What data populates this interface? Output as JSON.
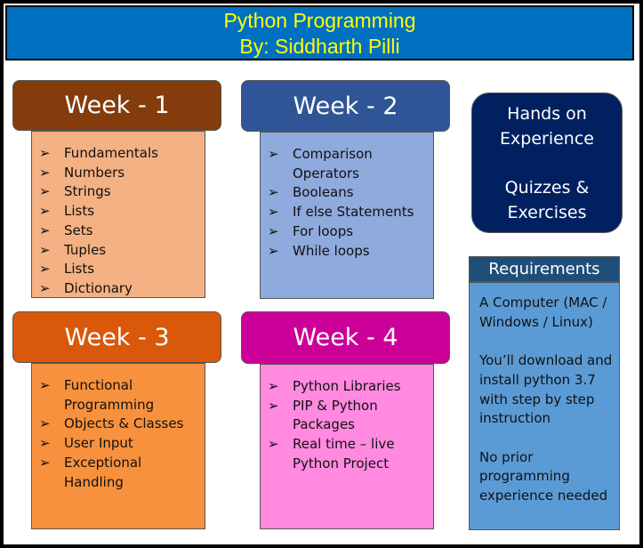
{
  "header": {
    "title": "Python Programming",
    "author": "By: Siddharth Pilli"
  },
  "weeks": [
    {
      "title": "Week - 1",
      "items": [
        "Fundamentals",
        "Numbers",
        "Strings",
        "Lists",
        "Sets",
        "Tuples",
        "Lists",
        "Dictionary"
      ]
    },
    {
      "title": "Week - 2",
      "items": [
        "Comparison Operators",
        "Booleans",
        "If else Statements",
        "For loops",
        "While loops"
      ]
    },
    {
      "title": "Week - 3",
      "items": [
        "Functional Programming",
        "Objects & Classes",
        "User Input",
        "Exceptional Handling"
      ]
    },
    {
      "title": "Week - 4",
      "items": [
        "Python Libraries",
        "PIP & Python Packages",
        "Real time – live Python Project"
      ]
    }
  ],
  "hands_on": [
    "Hands on Experience",
    "Quizzes & Exercises"
  ],
  "requirements": {
    "title": "Requirements",
    "paragraphs": [
      "A Computer (MAC / Windows / Linux)",
      "You’ll download and install python 3.7 with step by step instruction",
      "No prior programming experience needed"
    ]
  }
}
